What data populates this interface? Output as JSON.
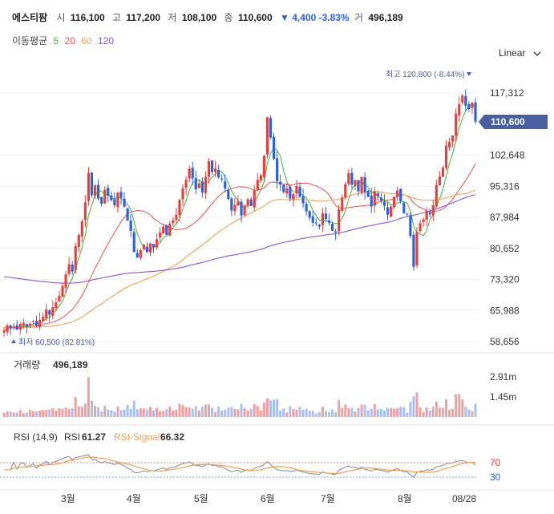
{
  "header": {
    "name": "에스티팜",
    "open_label": "시",
    "open": "116,100",
    "high_label": "고",
    "high": "117,200",
    "low_label": "저",
    "low": "108,100",
    "close_label": "종",
    "close": "110,600",
    "change": "▼ 4,400 -3.83%",
    "volume_label": "거",
    "volume": "496,189"
  },
  "ma_legend": {
    "label": "이동평균",
    "p5": "5",
    "p20": "20",
    "p60": "60",
    "p120": "120",
    "colors": {
      "p5": "#52b848",
      "p20": "#ea5a5a",
      "p60": "#f0a050",
      "p120": "#8a52d8"
    }
  },
  "scale_button": {
    "label": "Linear",
    "icon": "chevron-down-icon"
  },
  "price_axis": {
    "ticks": [
      "117,312",
      "102,648",
      "95,316",
      "87,984",
      "80,652",
      "73,320",
      "65,988",
      "58,656"
    ],
    "current_price": "110,600"
  },
  "annotations": {
    "high_text": "최고 120,800 (-8.44%)",
    "low_text": "최저 60,500 (82.81%)"
  },
  "volume_panel": {
    "title": "거래량",
    "value": "496,189",
    "ticks": [
      "2.91m",
      "1.45m"
    ]
  },
  "rsi_panel": {
    "title": "RSI (14,9)",
    "rsi_label": "RSI",
    "rsi_value": "61.27",
    "signal_label": "RSI-Signal",
    "signal_value": "66.32",
    "levels": [
      "70",
      "30"
    ]
  },
  "x_axis": {
    "ticks": [
      "3월",
      "4월",
      "5월",
      "6월",
      "7월",
      "8월",
      "08/28"
    ]
  },
  "colors": {
    "up": "#e8413b",
    "down": "#2d63d8",
    "rsi": "#888888",
    "signal": "#f0a050",
    "accent": "#4a5fa0"
  },
  "chart_data": {
    "type": "candlestick",
    "price_range": [
      58656,
      117312
    ],
    "closes": [
      61200,
      62500,
      61800,
      62300,
      61500,
      62800,
      63100,
      62200,
      62900,
      63500,
      62400,
      63800,
      64500,
      66200,
      65000,
      66800,
      67900,
      69500,
      71800,
      74500,
      76900,
      75200,
      81200,
      83800,
      87000,
      91500,
      98500,
      93200,
      95500,
      92400,
      91200,
      94500,
      93100,
      92000,
      90800,
      93800,
      92600,
      90500,
      87200,
      84800,
      79800,
      78500,
      80200,
      81500,
      79800,
      81800,
      80900,
      82800,
      84400,
      85800,
      83900,
      86500,
      87300,
      88600,
      92100,
      94800,
      96800,
      99500,
      97200,
      94600,
      96000,
      93800,
      97500,
      101200,
      98700,
      99500,
      97400,
      96900,
      94800,
      92300,
      89600,
      90900,
      91800,
      88400,
      90800,
      92200,
      90700,
      94300,
      96800,
      97900,
      102500,
      111600,
      106800,
      101800,
      96500,
      95700,
      93900,
      94800,
      92400,
      93500,
      95400,
      92800,
      91300,
      89400,
      87900,
      86700,
      86600,
      85800,
      88900,
      87600,
      86700,
      84800,
      84400,
      89900,
      92600,
      95800,
      98400,
      95700,
      96800,
      94100,
      97500,
      93900,
      92800,
      90500,
      94100,
      93000,
      91900,
      90700,
      88600,
      90500,
      92800,
      94300,
      91800,
      89000,
      88800,
      83600,
      76300,
      84500,
      86600,
      87500,
      89500,
      88700,
      90800,
      95600,
      97600,
      99700,
      104900,
      105800,
      107300,
      112400,
      114700,
      116700,
      114300,
      113500,
      115000,
      110600
    ],
    "candle_count": 146,
    "volume_max": 2910000,
    "rsi_levels": [
      30,
      70
    ],
    "xticks": [
      "3월",
      "4월",
      "5월",
      "6월",
      "7월",
      "8월",
      "08/28"
    ],
    "high": {
      "value": 120800,
      "pct": "-8.44%"
    },
    "low": {
      "value": 60500,
      "pct": "82.81%"
    },
    "last_close": 110600,
    "ma_periods": [
      5,
      20,
      60,
      120
    ]
  }
}
